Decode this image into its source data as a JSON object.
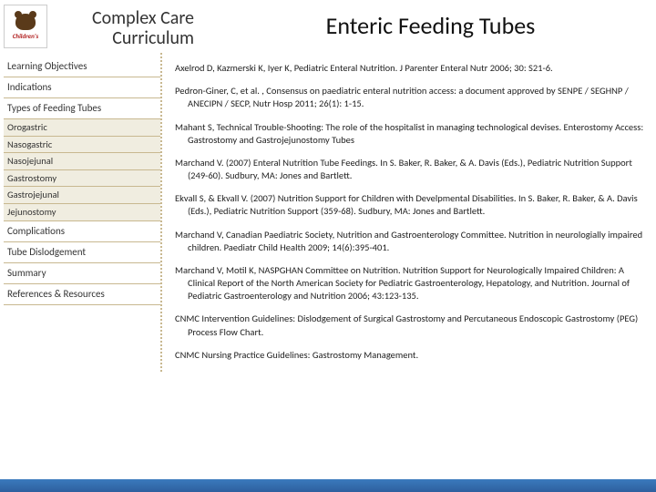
{
  "header": {
    "logo_name": "Children's",
    "curriculum_line1": "Complex Care",
    "curriculum_line2": "Curriculum",
    "main_title": "Enteric Feeding Tubes"
  },
  "sidebar": {
    "items": [
      {
        "label": "Learning Objectives",
        "sub": false
      },
      {
        "label": "Indications",
        "sub": false
      },
      {
        "label": "Types of Feeding Tubes",
        "sub": false
      },
      {
        "label": "Orogastric",
        "sub": true
      },
      {
        "label": "Nasogastric",
        "sub": true
      },
      {
        "label": "Nasojejunal",
        "sub": true
      },
      {
        "label": "Gastrostomy",
        "sub": true
      },
      {
        "label": "Gastrojejunal",
        "sub": true
      },
      {
        "label": "Jejunostomy",
        "sub": true
      },
      {
        "label": "Complications",
        "sub": false
      },
      {
        "label": "Tube Dislodgement",
        "sub": false
      },
      {
        "label": "Summary",
        "sub": false
      },
      {
        "label": "References & Resources",
        "sub": false
      }
    ]
  },
  "references": [
    "Axelrod D, Kazmerski K, Iyer K, Pediatric Enteral Nutrition.  J Parenter Enteral Nutr 2006; 30: S21-6.",
    "Pedron-Giner, C, et al. , Consensus on paediatric enteral nutrition access: a document approved by SENPE / SEGHNP /  ANECIPN / SECP, Nutr Hosp 2011; 26(1): 1-15.",
    "Mahant S, Technical Trouble-Shooting:  The role of the hospitalist in managing technological devises.  Enterostomy Access: Gastrostomy and Gastrojejunostomy Tubes",
    "Marchand V. (2007) Enteral Nutrition Tube Feedings.  In S. Baker, R. Baker, & A. Davis (Eds.), Pediatric Nutrition Support (249-60).  Sudbury, MA: Jones and Bartlett.",
    "Ekvall S, & Ekvall V. (2007) Nutrition Support for Children with Develpmental Disabilities.  In S. Baker, R. Baker, & A. Davis (Eds.), Pediatric Nutrition Support (359-68).  Sudbury, MA: Jones and Bartlett.",
    "Marchand V, Canadian Paediatric Society, Nutrition and Gastroenterology Committee.   Nutrition in neurologially impaired children.  Paediatr Child Health 2009; 14(6):395-401.",
    "Marchand V, Motil K, NASPGHAN Committee on Nutrition. Nutrition Support for Neurologically Impaired Children: A Clinical Report of the North American Society for Pediatric Gastroenterology, Hepatology, and Nutrition. Journal of Pediatric Gastroenterology and Nutrition 2006; 43:123-135.",
    "CNMC Intervention Guidelines:  Dislodgement of Surgical Gastrostomy and Percutaneous Endoscopic Gastrostomy (PEG) Process Flow Chart.",
    "CNMC Nursing Practice Guidelines:  Gastrostomy Management."
  ],
  "colors": {
    "sidebar_border": "#c8b890",
    "sub_bg": "#f0ede0",
    "footer_top": "#3a7abd",
    "footer_bottom": "#2e5f9e"
  }
}
